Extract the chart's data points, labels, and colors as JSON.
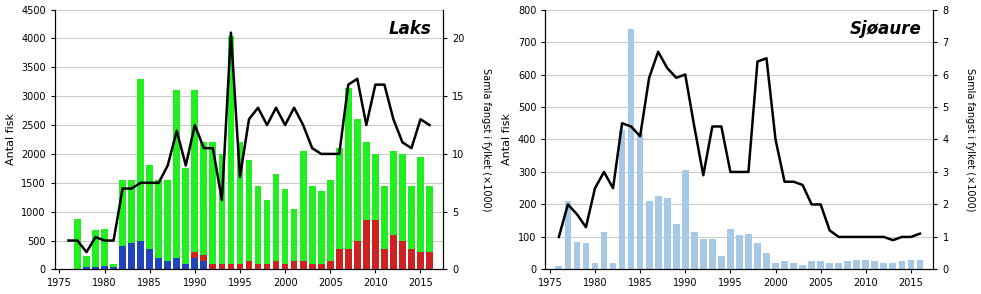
{
  "years": [
    1976,
    1977,
    1978,
    1979,
    1980,
    1981,
    1982,
    1983,
    1984,
    1985,
    1986,
    1987,
    1988,
    1989,
    1990,
    1991,
    1992,
    1993,
    1994,
    1995,
    1996,
    1997,
    1998,
    1999,
    2000,
    2001,
    2002,
    2003,
    2004,
    2005,
    2006,
    2007,
    2008,
    2009,
    2010,
    2011,
    2012,
    2013,
    2014,
    2015,
    2016
  ],
  "laks_total": [
    0,
    880,
    230,
    680,
    700,
    100,
    1550,
    1550,
    3300,
    1800,
    1550,
    1550,
    3100,
    1750,
    3100,
    2200,
    2200,
    2000,
    4050,
    2200,
    1900,
    1450,
    1200,
    1650,
    1400,
    1050,
    2050,
    1450,
    1350,
    1550,
    2100,
    3150,
    2600,
    2200,
    2000,
    1450,
    2050,
    2000,
    1450,
    1950,
    1450
  ],
  "laks_blue": [
    0,
    0,
    50,
    50,
    60,
    50,
    400,
    450,
    500,
    350,
    200,
    150,
    200,
    100,
    200,
    150,
    0,
    0,
    0,
    0,
    0,
    0,
    0,
    0,
    0,
    0,
    0,
    0,
    0,
    0,
    0,
    0,
    0,
    0,
    0,
    0,
    0,
    0,
    0,
    0,
    0
  ],
  "laks_red": [
    0,
    0,
    0,
    0,
    0,
    0,
    0,
    0,
    0,
    0,
    0,
    0,
    0,
    0,
    100,
    100,
    100,
    100,
    100,
    100,
    150,
    100,
    100,
    150,
    100,
    150,
    150,
    100,
    100,
    150,
    350,
    350,
    500,
    850,
    850,
    350,
    600,
    500,
    350,
    300,
    300
  ],
  "laks_line": [
    2.5,
    2.5,
    1.5,
    2.8,
    2.5,
    2.5,
    7.0,
    7.0,
    7.5,
    7.5,
    7.5,
    9.0,
    12.0,
    9.0,
    12.5,
    10.5,
    10.5,
    6.0,
    20.5,
    8.0,
    13.0,
    14.0,
    12.5,
    14.0,
    12.5,
    14.0,
    12.5,
    10.5,
    10.0,
    10.0,
    10.0,
    16.0,
    16.5,
    12.5,
    16.0,
    16.0,
    13.0,
    11.0,
    10.5,
    13.0,
    12.5
  ],
  "sjoaure_bars": [
    10,
    210,
    85,
    80,
    20,
    115,
    20,
    430,
    740,
    420,
    210,
    225,
    220,
    140,
    305,
    115,
    95,
    95,
    40,
    125,
    105,
    110,
    80,
    50,
    20,
    25,
    20,
    15,
    25,
    25,
    20,
    20,
    25,
    30,
    30,
    25,
    20,
    20,
    25,
    30,
    30
  ],
  "sjoaure_line": [
    1.0,
    2.0,
    1.7,
    1.3,
    2.5,
    3.0,
    2.5,
    4.5,
    4.4,
    4.1,
    5.9,
    6.7,
    6.2,
    5.9,
    6.0,
    4.4,
    2.9,
    4.4,
    4.4,
    3.0,
    3.0,
    3.0,
    6.4,
    6.5,
    4.0,
    2.7,
    2.7,
    2.6,
    2.0,
    2.0,
    1.2,
    1.0,
    1.0,
    1.0,
    1.0,
    1.0,
    1.0,
    0.9,
    1.0,
    1.0,
    1.1
  ],
  "laks_ylim": [
    0,
    4500
  ],
  "laks_y2lim": [
    0,
    22.5
  ],
  "laks_yticks": [
    0,
    500,
    1000,
    1500,
    2000,
    2500,
    3000,
    3500,
    4000,
    4500
  ],
  "laks_y2ticks": [
    0,
    5,
    10,
    15,
    20
  ],
  "sjoaure_ylim": [
    0,
    800
  ],
  "sjoaure_y2lim": [
    0,
    8
  ],
  "sjoaure_yticks": [
    0,
    100,
    200,
    300,
    400,
    500,
    600,
    700,
    800
  ],
  "sjoaure_y2ticks": [
    0,
    1,
    2,
    3,
    4,
    5,
    6,
    7,
    8
  ],
  "xlim": [
    1974.5,
    2017.5
  ],
  "xticks": [
    1975,
    1980,
    1985,
    1990,
    1995,
    2000,
    2005,
    2010,
    2015
  ],
  "laks_title": "Laks",
  "sjoaure_title": "Sjøaure",
  "ylabel_left": "Antal fisk",
  "ylabel_right": "Samla fangst i fylket (×1000)",
  "color_green": "#22ee22",
  "color_blue": "#2244bb",
  "color_red": "#cc2222",
  "color_bar_sjoaure": "#a8c8e8",
  "color_line": "#000000",
  "bg_color": "#ffffff",
  "grid_color": "#c0c0c0"
}
